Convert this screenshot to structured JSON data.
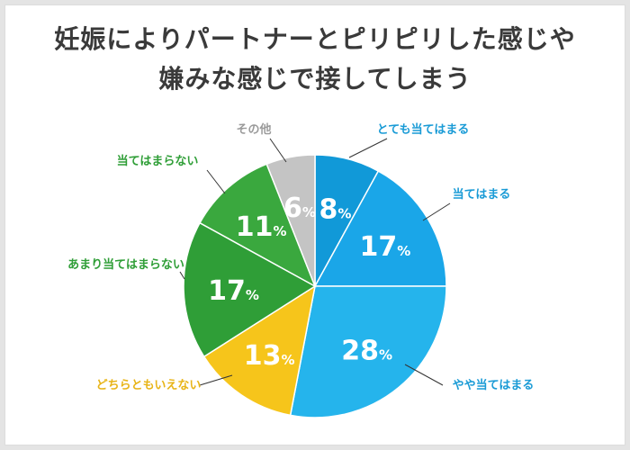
{
  "title_lines": [
    "妊娠によりパートナーとピリピリした感じや",
    "嫌みな感じで接してしまう"
  ],
  "chart_data": {
    "type": "pie",
    "title": "妊娠によりパートナーとピリピリした感じや嫌みな感じで接してしまう",
    "start": "12 o'clock",
    "direction": "clockwise",
    "percent_unit": "%",
    "slices": [
      {
        "label": "とても当てはまる",
        "value": 8,
        "color": "#1199d8",
        "label_color": "#1a9bd6"
      },
      {
        "label": "当てはまる",
        "value": 17,
        "color": "#1aa6e8",
        "label_color": "#1a9bd6"
      },
      {
        "label": "やや当てはまる",
        "value": 28,
        "color": "#25b4ec",
        "label_color": "#1a9bd6"
      },
      {
        "label": "どちらともいえない",
        "value": 13,
        "color": "#f6c51b",
        "label_color": "#e8b417"
      },
      {
        "label": "あまり当てはまらない",
        "value": 17,
        "color": "#2f9e37",
        "label_color": "#2f9e37"
      },
      {
        "label": "当てはまらない",
        "value": 11,
        "color": "#3aa83e",
        "label_color": "#2f9e37"
      },
      {
        "label": "その他",
        "value": 6,
        "color": "#c4c4c4",
        "label_color": "#9a9a9a"
      }
    ]
  }
}
